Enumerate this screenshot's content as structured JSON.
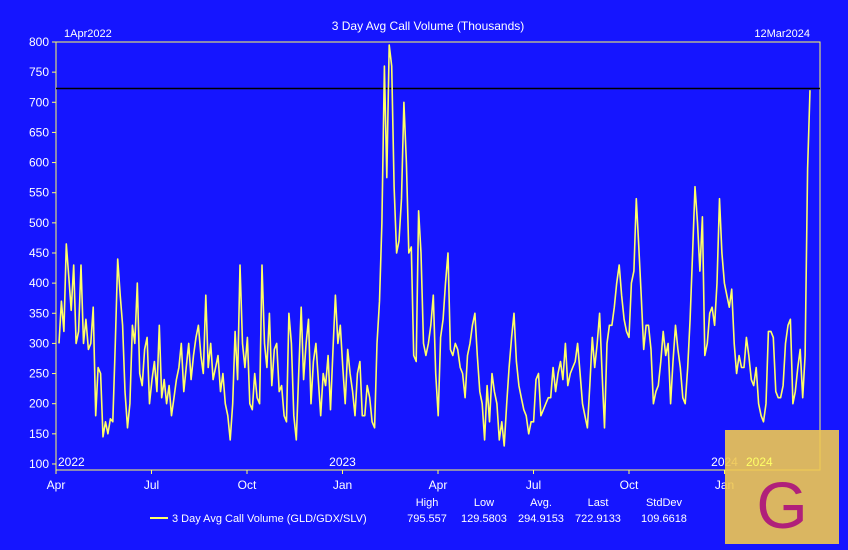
{
  "chart_data": {
    "type": "line",
    "title": "3 Day Avg Call Volume (Thousands)",
    "range_start": "1Apr2022",
    "range_end": "12Mar2024",
    "y_ticks": [
      100,
      150,
      200,
      250,
      300,
      350,
      400,
      450,
      500,
      550,
      600,
      650,
      700,
      750,
      800
    ],
    "ylim": [
      90,
      800
    ],
    "x_ticks": [
      "Apr",
      "Jul",
      "Oct",
      "Jan",
      "Apr",
      "Jul",
      "Oct",
      "Jan"
    ],
    "year_labels": [
      "2022",
      "2023",
      "2024"
    ],
    "reference_line": 722.9,
    "grid": false,
    "legend_position": "bottom",
    "series": [
      {
        "name": "3 Day Avg Call Volume (GLD/GDX/SLV)",
        "color": "#ffff66",
        "values": [
          300,
          370,
          320,
          465,
          410,
          355,
          430,
          300,
          320,
          430,
          300,
          340,
          290,
          300,
          360,
          180,
          260,
          250,
          145,
          170,
          150,
          175,
          170,
          300,
          440,
          380,
          330,
          220,
          160,
          200,
          330,
          300,
          400,
          250,
          230,
          290,
          310,
          200,
          240,
          270,
          220,
          330,
          210,
          240,
          200,
          230,
          180,
          210,
          240,
          260,
          300,
          220,
          260,
          300,
          240,
          280,
          310,
          330,
          280,
          250,
          380,
          260,
          300,
          240,
          260,
          280,
          220,
          250,
          200,
          180,
          140,
          200,
          320,
          240,
          430,
          300,
          260,
          310,
          200,
          190,
          250,
          210,
          200,
          430,
          300,
          260,
          350,
          230,
          290,
          300,
          220,
          230,
          180,
          170,
          350,
          300,
          180,
          140,
          250,
          360,
          240,
          300,
          340,
          200,
          270,
          300,
          240,
          180,
          250,
          230,
          280,
          190,
          290,
          380,
          300,
          330,
          260,
          200,
          290,
          250,
          220,
          180,
          250,
          270,
          180,
          180,
          230,
          210,
          170,
          160,
          300,
          370,
          500,
          760,
          575,
          795,
          760,
          560,
          450,
          470,
          540,
          700,
          600,
          450,
          460,
          280,
          270,
          520,
          450,
          300,
          280,
          300,
          330,
          380,
          250,
          180,
          310,
          340,
          400,
          450,
          290,
          280,
          300,
          290,
          260,
          250,
          210,
          280,
          300,
          330,
          350,
          280,
          220,
          200,
          140,
          230,
          170,
          250,
          220,
          200,
          140,
          170,
          130,
          200,
          260,
          310,
          350,
          270,
          230,
          210,
          190,
          180,
          150,
          170,
          170,
          240,
          250,
          180,
          190,
          200,
          210,
          210,
          260,
          220,
          250,
          270,
          240,
          300,
          230,
          250,
          260,
          270,
          300,
          250,
          200,
          180,
          160,
          230,
          310,
          260,
          300,
          350,
          250,
          160,
          300,
          330,
          330,
          360,
          400,
          430,
          380,
          340,
          320,
          310,
          400,
          420,
          540,
          460,
          380,
          290,
          330,
          330,
          290,
          200,
          220,
          230,
          270,
          320,
          280,
          300,
          200,
          270,
          330,
          290,
          260,
          210,
          200,
          260,
          340,
          450,
          560,
          500,
          420,
          510,
          280,
          300,
          350,
          360,
          330,
          400,
          540,
          450,
          400,
          380,
          360,
          390,
          300,
          250,
          280,
          260,
          260,
          310,
          280,
          240,
          230,
          260,
          200,
          180,
          170,
          200,
          320,
          320,
          310,
          220,
          210,
          210,
          230,
          300,
          330,
          340,
          200,
          220,
          260,
          290,
          210,
          280,
          590,
          720
        ]
      }
    ],
    "stats": {
      "high_label": "High",
      "high": "795.557",
      "low_label": "Low",
      "low": "129.5803",
      "avg_label": "Avg.",
      "avg": "294.9153",
      "last_label": "Last",
      "last": "722.9133",
      "stddev_label": "StdDev",
      "stddev": "109.6618"
    }
  },
  "watermark": {
    "letter": "G",
    "year_overlay": "2024",
    "bg": "#f0c850",
    "fg": "#b0207a"
  },
  "colors": {
    "background": "#1515ff",
    "line": "#ffff66",
    "text": "#ffffff",
    "border": "#ffff66"
  }
}
